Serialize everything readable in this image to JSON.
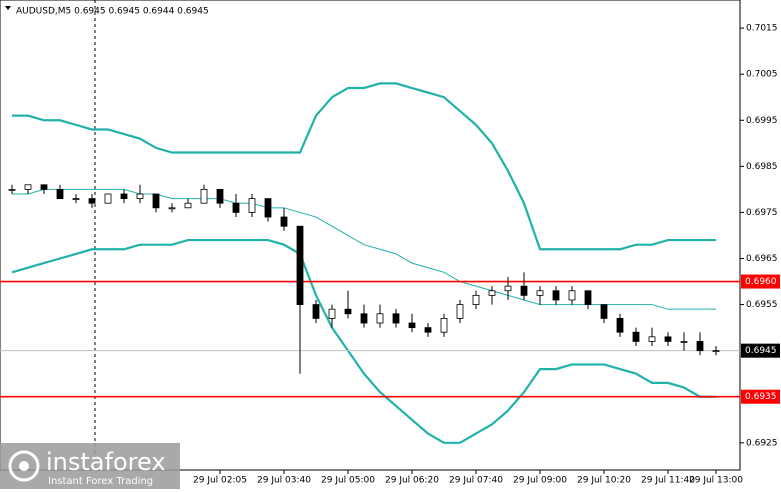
{
  "chart_data": {
    "type": "candlestick",
    "title": "AUDUSD,M5  0.6945 0.6945 0.6944 0.6945",
    "categories": [
      null,
      null,
      null,
      null,
      null,
      null,
      null,
      null,
      null,
      null,
      null,
      null,
      null,
      "29 Jul 02:05",
      null,
      null,
      null,
      "29 Jul 03:40",
      null,
      null,
      null,
      "29 Jul 05:00",
      null,
      null,
      null,
      "29 Jul 06:20",
      null,
      null,
      null,
      "29 Jul 07:40",
      null,
      null,
      null,
      "29 Jul 09:00",
      null,
      null,
      null,
      "29 Jul 10:20",
      null,
      null,
      null,
      "29 Jul 11:40",
      null,
      null,
      "29 Jul 13:00"
    ],
    "open": [
      0.698,
      0.698,
      0.6981,
      0.698,
      0.6978,
      0.6978,
      0.6977,
      0.6979,
      0.6978,
      0.6979,
      0.6976,
      0.6976,
      0.6977,
      0.698,
      0.6977,
      0.6975,
      0.6978,
      0.6974,
      0.6972,
      0.6955,
      0.6952,
      0.6954,
      0.6953,
      0.6951,
      0.6953,
      0.6951,
      0.695,
      0.6949,
      0.6952,
      0.6955,
      0.6957,
      0.6958,
      0.6959,
      0.6957,
      0.6958,
      0.6956,
      0.6958,
      0.6955,
      0.6952,
      0.6949,
      0.6947,
      0.6948,
      0.6947,
      0.6947,
      0.6945
    ],
    "high": [
      0.6981,
      0.6981,
      0.6981,
      0.6981,
      0.6979,
      0.6979,
      0.6979,
      0.698,
      0.6981,
      0.6979,
      0.6977,
      0.6978,
      0.6981,
      0.698,
      0.6979,
      0.6979,
      0.6978,
      0.6976,
      0.6972,
      0.6956,
      0.6955,
      0.6958,
      0.6955,
      0.6955,
      0.6954,
      0.6953,
      0.6951,
      0.6953,
      0.6956,
      0.6958,
      0.6959,
      0.6961,
      0.6962,
      0.6959,
      0.6959,
      0.6959,
      0.6958,
      0.6955,
      0.6953,
      0.695,
      0.695,
      0.6949,
      0.6949,
      0.6949,
      0.6946
    ],
    "low": [
      0.6979,
      0.6979,
      0.6979,
      0.6978,
      0.6977,
      0.6976,
      0.6977,
      0.6977,
      0.6977,
      0.6975,
      0.6975,
      0.6976,
      0.6977,
      0.6976,
      0.6974,
      0.6974,
      0.6973,
      0.6971,
      0.694,
      0.6951,
      0.695,
      0.6952,
      0.695,
      0.695,
      0.695,
      0.6949,
      0.6948,
      0.6948,
      0.6951,
      0.6954,
      0.6955,
      0.6956,
      0.6956,
      0.6955,
      0.6955,
      0.6955,
      0.6954,
      0.6951,
      0.6948,
      0.6946,
      0.6946,
      0.6946,
      0.6945,
      0.6944,
      0.6944
    ],
    "close": [
      0.698,
      0.6981,
      0.698,
      0.6978,
      0.6978,
      0.6977,
      0.6979,
      0.6978,
      0.6979,
      0.6976,
      0.6976,
      0.6977,
      0.698,
      0.6977,
      0.6975,
      0.6978,
      0.6974,
      0.6972,
      0.6955,
      0.6952,
      0.6954,
      0.6953,
      0.6951,
      0.6953,
      0.6951,
      0.695,
      0.6949,
      0.6952,
      0.6955,
      0.6957,
      0.6958,
      0.6959,
      0.6957,
      0.6958,
      0.6956,
      0.6958,
      0.6955,
      0.6952,
      0.6949,
      0.6947,
      0.6948,
      0.6947,
      0.6947,
      0.6945,
      0.6945
    ],
    "series": [
      {
        "color": "#20b2aa",
        "values": [
          0.6996,
          0.6996,
          0.6995,
          0.6995,
          0.6994,
          0.6993,
          0.6993,
          0.6992,
          0.6991,
          0.6989,
          0.6988,
          0.6988,
          0.6988,
          0.6988,
          0.6988,
          0.6988,
          0.6988,
          0.6988,
          0.6988,
          0.6996,
          0.7,
          0.7002,
          0.7002,
          0.7003,
          0.7003,
          0.7002,
          0.7001,
          0.7,
          0.6997,
          0.6994,
          0.699,
          0.6984,
          0.6977,
          0.6967,
          0.6967,
          0.6967,
          0.6967,
          0.6967,
          0.6967,
          0.6968,
          0.6968,
          0.6969,
          0.6969,
          0.6969,
          0.6969
        ]
      },
      {
        "color": "#20b2aa",
        "values": [
          0.6979,
          0.6979,
          0.698,
          0.698,
          0.698,
          0.698,
          0.698,
          0.698,
          0.6979,
          0.6979,
          0.6978,
          0.6978,
          0.6978,
          0.6978,
          0.6977,
          0.6977,
          0.6976,
          0.6976,
          0.6975,
          0.6974,
          0.6972,
          0.697,
          0.6968,
          0.6967,
          0.6966,
          0.6964,
          0.6963,
          0.6962,
          0.696,
          0.6959,
          0.6958,
          0.6957,
          0.6956,
          0.6955,
          0.6955,
          0.6955,
          0.6955,
          0.6955,
          0.6955,
          0.6955,
          0.6955,
          0.6954,
          0.6954,
          0.6954,
          0.6954
        ]
      },
      {
        "color": "#20b2aa",
        "values": [
          0.6962,
          0.6963,
          0.6964,
          0.6965,
          0.6966,
          0.6967,
          0.6967,
          0.6967,
          0.6968,
          0.6968,
          0.6968,
          0.6969,
          0.6969,
          0.6969,
          0.6969,
          0.6969,
          0.6969,
          0.6968,
          0.6966,
          0.6957,
          0.695,
          0.6945,
          0.694,
          0.6936,
          0.6933,
          0.693,
          0.6927,
          0.6925,
          0.6925,
          0.6927,
          0.6929,
          0.6932,
          0.6936,
          0.6941,
          0.6941,
          0.6942,
          0.6942,
          0.6942,
          0.6941,
          0.694,
          0.6938,
          0.6938,
          0.6937,
          0.6935,
          0.6935
        ]
      }
    ],
    "levels": [
      {
        "value": 0.696,
        "label": "0.6960",
        "color": "#ff0000"
      },
      {
        "value": 0.6945,
        "label": "0.6945",
        "color": "#c0c0c0"
      },
      {
        "value": 0.6935,
        "label": "0.6935",
        "color": "#ff0000"
      }
    ],
    "ylim": [
      0.69191,
      0.70211
    ],
    "yticks": [
      0.6925,
      0.6955,
      0.6965,
      0.6975,
      0.6985,
      0.6995,
      0.7005,
      0.7015
    ]
  },
  "watermark": {
    "brand": "instaforex",
    "slogan": "Instant Forex Trading"
  }
}
